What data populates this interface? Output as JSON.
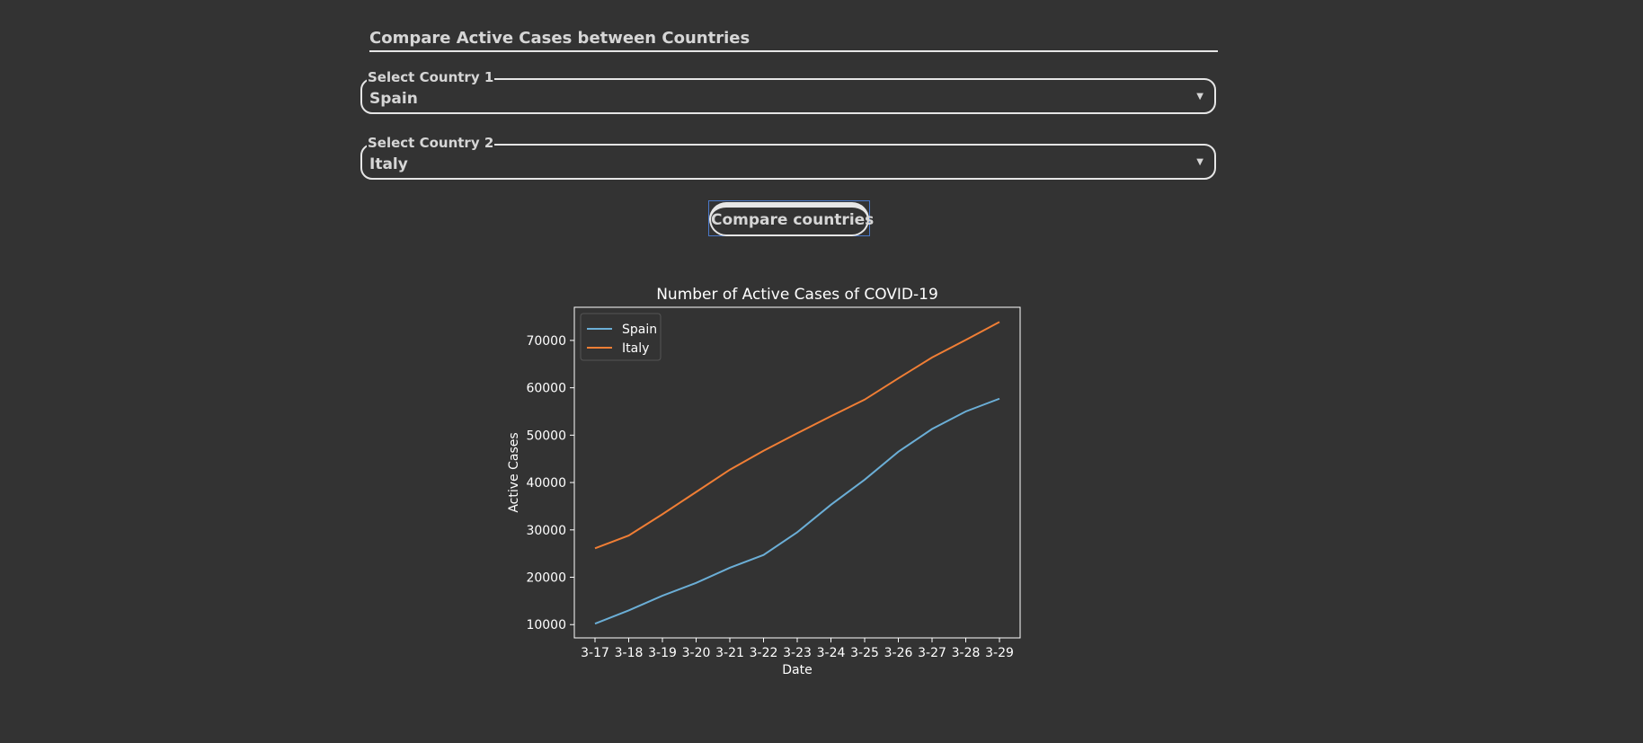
{
  "form": {
    "heading": "Compare Active Cases between Countries",
    "country1": {
      "label": "Select Country 1",
      "value": "Spain"
    },
    "country2": {
      "label": "Select Country 2",
      "value": "Italy"
    },
    "compare_button": "Compare countries"
  },
  "chart_data": {
    "type": "line",
    "title": "Number of Active Cases of COVID-19",
    "xlabel": "Date",
    "ylabel": "Active Cases",
    "categories": [
      "3-17",
      "3-18",
      "3-19",
      "3-20",
      "3-21",
      "3-22",
      "3-23",
      "3-24",
      "3-25",
      "3-26",
      "3-27",
      "3-28",
      "3-29"
    ],
    "yticks": [
      10000,
      20000,
      30000,
      40000,
      50000,
      60000,
      70000
    ],
    "ylim": [
      7200,
      77000
    ],
    "legend": "top-left",
    "grid": false,
    "series": [
      {
        "name": "Spain",
        "color": "#6baed6",
        "values": [
          10200,
          13000,
          16100,
          18800,
          22000,
          24700,
          29500,
          35300,
          40600,
          46500,
          51300,
          55000,
          57700
        ]
      },
      {
        "name": "Italy",
        "color": "#f07e35",
        "values": [
          26100,
          28800,
          33300,
          38000,
          42700,
          46700,
          50400,
          54000,
          57500,
          62000,
          66400,
          70100,
          73900
        ]
      }
    ]
  }
}
